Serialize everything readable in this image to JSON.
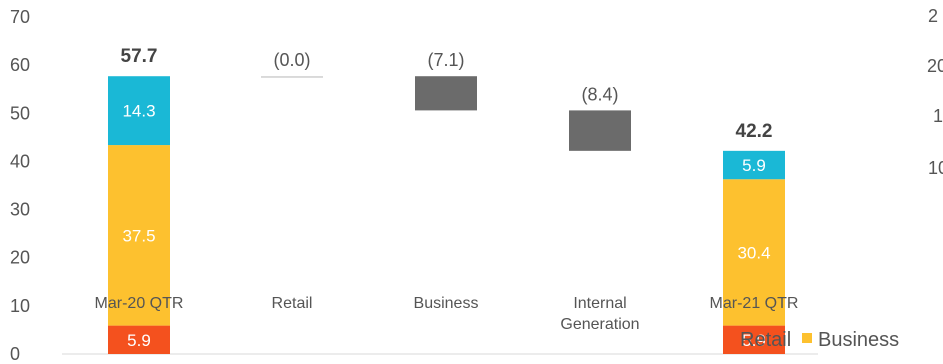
{
  "chart_data": {
    "type": "bar",
    "subtype": "stacked-waterfall",
    "ylim": [
      0,
      70
    ],
    "yticks": [
      0,
      10,
      20,
      30,
      40,
      50,
      60,
      70
    ],
    "grid": false,
    "legend_placement": "bottom-right",
    "categories": [
      "Mar-20 QTR",
      "Retail",
      "Business",
      "Internal Generation",
      "Mar-21 QTR"
    ],
    "category_lines": [
      [
        "Mar-20 QTR"
      ],
      [
        "Retail"
      ],
      [
        "Business"
      ],
      [
        "Internal",
        "Generation"
      ],
      [
        "Mar-21 QTR"
      ]
    ],
    "series": [
      {
        "name": "Retail",
        "color": "#f4511e"
      },
      {
        "name": "Business",
        "color": "#fdc12f"
      },
      {
        "name": "",
        "color": "#1ab8d6"
      }
    ],
    "bars": [
      {
        "kind": "total",
        "category": "Mar-20 QTR",
        "segments": [
          5.9,
          37.5,
          14.3
        ],
        "segment_labels": [
          "5.9",
          "37.5",
          "14.3"
        ],
        "total": 57.7,
        "total_label": "57.7"
      },
      {
        "kind": "delta",
        "category": "Retail",
        "from": 57.7,
        "value": -0.0,
        "label": "(0.0)"
      },
      {
        "kind": "delta",
        "category": "Business",
        "from": 57.7,
        "value": -7.1,
        "label": "(7.1)"
      },
      {
        "kind": "delta",
        "category": "Internal Generation",
        "from": 50.6,
        "value": -8.4,
        "label": "(8.4)"
      },
      {
        "kind": "total",
        "category": "Mar-21 QTR",
        "segments": [
          5.9,
          30.4,
          5.9
        ],
        "segment_labels": [
          "5.9",
          "30.4",
          "5.9"
        ],
        "total": 42.2,
        "total_label": "42.2"
      }
    ],
    "delta_color": "#6b6b6b",
    "secondary_axis_partial_ticks": [
      "2",
      "20",
      "1",
      "10"
    ]
  },
  "legend": [
    {
      "label": "Retail",
      "color": "#f4511e"
    },
    {
      "label": "Business",
      "color": "#fdc12f"
    }
  ]
}
